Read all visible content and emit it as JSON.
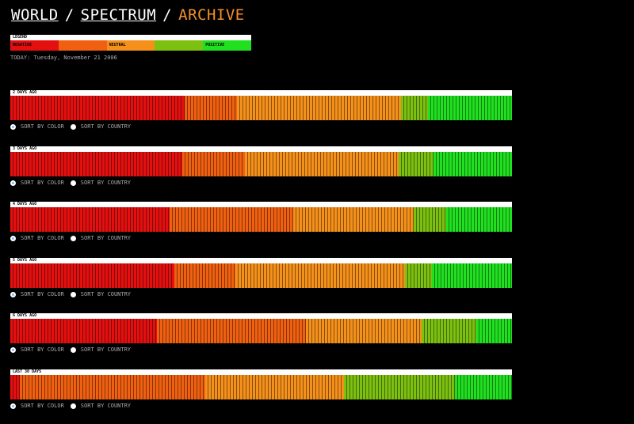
{
  "header": {
    "crumbs": [
      "WORLD",
      "SPECTRUM"
    ],
    "separator": "/",
    "current": "ARCHIVE"
  },
  "legend": {
    "title": "LEGEND",
    "segments": [
      {
        "label": "NEGATIVE",
        "color": "#e41010"
      },
      {
        "label": "",
        "color": "#f06010"
      },
      {
        "label": "NEUTRAL",
        "color": "#f5901a"
      },
      {
        "label": "",
        "color": "#7cc010"
      },
      {
        "label": "POSITIVE",
        "color": "#20e020"
      }
    ]
  },
  "today": "TODAY: Tuesday, November 21 2006",
  "sort_options": {
    "by_color": "SORT BY COLOR",
    "by_country": "SORT BY COUNTRY"
  },
  "panels": [
    {
      "label": "2 DAYS AGO",
      "distribution": [
        {
          "color": "#e41010",
          "share": 0.348
        },
        {
          "color": "#f06010",
          "share": 0.104
        },
        {
          "color": "#f5901a",
          "share": 0.327
        },
        {
          "color": "#7cc010",
          "share": 0.054
        },
        {
          "color": "#20e020",
          "share": 0.167
        }
      ]
    },
    {
      "label": "3 DAYS AGO",
      "distribution": [
        {
          "color": "#e41010",
          "share": 0.343
        },
        {
          "color": "#f06010",
          "share": 0.125
        },
        {
          "color": "#f5901a",
          "share": 0.306
        },
        {
          "color": "#7cc010",
          "share": 0.069
        },
        {
          "color": "#20e020",
          "share": 0.157
        }
      ]
    },
    {
      "label": "4 DAYS AGO",
      "distribution": [
        {
          "color": "#e41010",
          "share": 0.318
        },
        {
          "color": "#f06010",
          "share": 0.246
        },
        {
          "color": "#f5901a",
          "share": 0.24
        },
        {
          "color": "#7cc010",
          "share": 0.065
        },
        {
          "color": "#20e020",
          "share": 0.131
        }
      ]
    },
    {
      "label": "5 DAYS AGO",
      "distribution": [
        {
          "color": "#e41010",
          "share": 0.327
        },
        {
          "color": "#f06010",
          "share": 0.122
        },
        {
          "color": "#f5901a",
          "share": 0.338
        },
        {
          "color": "#7cc010",
          "share": 0.054
        },
        {
          "color": "#20e020",
          "share": 0.159
        }
      ]
    },
    {
      "label": "6 DAYS AGO",
      "distribution": [
        {
          "color": "#e41010",
          "share": 0.292
        },
        {
          "color": "#f06010",
          "share": 0.297
        },
        {
          "color": "#f5901a",
          "share": 0.231
        },
        {
          "color": "#7cc010",
          "share": 0.109
        },
        {
          "color": "#20e020",
          "share": 0.071
        }
      ]
    },
    {
      "label": "LAST 30 DAYS",
      "distribution": [
        {
          "color": "#e41010",
          "share": 0.019
        },
        {
          "color": "#f06010",
          "share": 0.37
        },
        {
          "color": "#f5901a",
          "share": 0.276
        },
        {
          "color": "#7cc010",
          "share": 0.221
        },
        {
          "color": "#20e020",
          "share": 0.114
        }
      ]
    }
  ]
}
